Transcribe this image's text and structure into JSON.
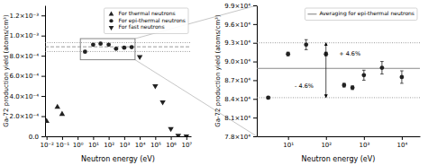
{
  "chart_data": [
    {
      "type": "scatter",
      "log": "x",
      "xlabel": "Neutron energy (eV)",
      "ylabel": "Ga-72 production yield (atoms/cm³)",
      "series": [
        {
          "name": "For thermal neutrons",
          "color": "#222222",
          "marker": "triangle-up",
          "x": [
            0.01,
            0.05,
            0.1
          ],
          "values": [
            0.00015,
            0.00029,
            0.00022
          ]
        },
        {
          "name": "For epi-thermal neutrons",
          "color": "#222222",
          "marker": "circle",
          "x": [
            3,
            10,
            30,
            100,
            300,
            1000,
            3000
          ],
          "values": [
            0.00084,
            0.00091,
            0.00092,
            0.00091,
            0.00087,
            0.00088,
            0.000885
          ]
        },
        {
          "name": "For fast neutrons",
          "color": "#222222",
          "marker": "triangle-down",
          "x": [
            10000.0,
            100000.0,
            300000.0,
            1000000.0,
            3000000.0,
            10000000.0
          ],
          "values": [
            0.00079,
            0.0005,
            0.00034,
            7.5e-05,
            8e-06,
            2e-06
          ]
        }
      ],
      "xlim": [
        0.008,
        20000000.0
      ],
      "ylim": [
        0.0,
        0.0013
      ],
      "xticks": [
        {
          "value": 0.01,
          "label": "10⁻²"
        },
        {
          "value": 0.1,
          "label": "10⁻¹"
        },
        {
          "value": 1,
          "label": "10⁰"
        },
        {
          "value": 10,
          "label": "10¹"
        },
        {
          "value": 100,
          "label": "10²"
        },
        {
          "value": 1000,
          "label": "10³"
        },
        {
          "value": 10000,
          "label": "10⁴"
        },
        {
          "value": 100000,
          "label": "10⁵"
        },
        {
          "value": 1000000,
          "label": "10⁶"
        },
        {
          "value": 10000000,
          "label": "10⁷"
        }
      ],
      "yticks": [
        {
          "value": 0.0,
          "label": "0.0"
        },
        {
          "value": 0.0002,
          "label": "2.0×10⁻⁴"
        },
        {
          "value": 0.0004,
          "label": "4.0×10⁻⁴"
        },
        {
          "value": 0.0006,
          "label": "6.0×10⁻⁴"
        },
        {
          "value": 0.0008,
          "label": "8.0×10⁻⁴"
        },
        {
          "value": 0.001,
          "label": "1.0×10⁻³"
        },
        {
          "value": 0.0012,
          "label": "1.2×10⁻³"
        }
      ],
      "reference_lines": [
        {
          "y": 0.000889,
          "color": "gray",
          "line_style": "dashed"
        },
        {
          "y": 0.00093,
          "color": "gray",
          "line_style": "dotted"
        },
        {
          "y": 0.000842,
          "color": "gray",
          "line_style": "dotted"
        }
      ],
      "zoom_box": {
        "x": [
          1.5,
          5000
        ],
        "y": [
          0.00076,
          0.00097
        ],
        "color": "#777777"
      },
      "legend": "upper right",
      "grid": false
    },
    {
      "type": "scatter",
      "log": "x",
      "xlabel": "Neutron energy (eV)",
      "ylabel": "Ga-72 production yield (atoms/cm³)",
      "series": [
        {
          "color": "#222222",
          "marker": "circle",
          "x": [
            3,
            10,
            30,
            100,
            300,
            500,
            1000,
            3000,
            10000
          ],
          "values": [
            84200.0,
            91200.0,
            92700.0,
            91200.0,
            86200.0,
            85800.0,
            87800.0,
            89000.0,
            87500.0
          ],
          "errors": [
            200.0,
            300.0,
            800.0,
            300.0,
            300.0,
            300.0,
            800.0,
            1000.0,
            1000.0
          ]
        }
      ],
      "xlim": [
        1.5,
        30000
      ],
      "ylim": [
        78000,
        99000
      ],
      "xticks": [
        {
          "value": 10,
          "label": "10¹"
        },
        {
          "value": 100,
          "label": "10²"
        },
        {
          "value": 1000,
          "label": "10³"
        },
        {
          "value": 10000,
          "label": "10⁴"
        }
      ],
      "yticks": [
        {
          "value": 78000,
          "label": "7.8×10⁴"
        },
        {
          "value": 81000,
          "label": "8.1×10⁴"
        },
        {
          "value": 84000,
          "label": "8.4×10⁴"
        },
        {
          "value": 87000,
          "label": "8.7×10⁴"
        },
        {
          "value": 90000,
          "label": "9.0×10⁴"
        },
        {
          "value": 93000,
          "label": "9.3×10⁴"
        },
        {
          "value": 96000,
          "label": "9.6×10⁴"
        },
        {
          "value": 99000,
          "label": "9.9×10⁴"
        }
      ],
      "reference_lines": [
        {
          "y": 88900.0,
          "name": "Averaging for epi-thermal neutrons",
          "color": "#888888",
          "line_style": "solid"
        },
        {
          "y": 93000.0,
          "color": "gray",
          "line_style": "dotted"
        },
        {
          "y": 84200.0,
          "color": "gray",
          "line_style": "dotted"
        }
      ],
      "annotations": [
        {
          "text": "+ 4.6%",
          "x": 220,
          "y": 91200.0
        },
        {
          "text": "- 4.6%",
          "x": 15,
          "y": 86000.0
        }
      ],
      "arrows": [
        {
          "x": 100,
          "from": 88900.0,
          "to": 93000.0
        },
        {
          "x": 100,
          "from": 88900.0,
          "to": 84200.0
        }
      ],
      "legend": "upper right",
      "grid": false
    }
  ]
}
